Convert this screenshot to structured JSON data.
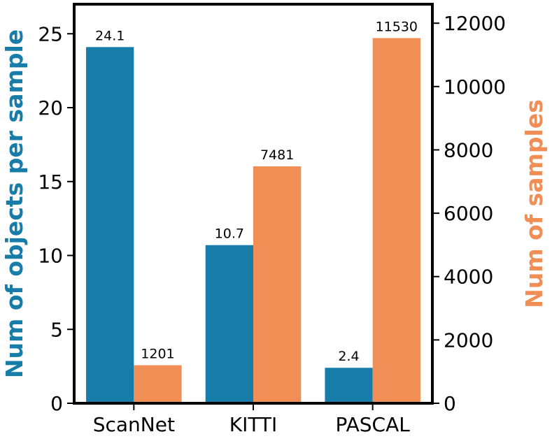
{
  "chart_data": {
    "type": "bar",
    "categories": [
      "ScanNet",
      "KITTI",
      "PASCAL"
    ],
    "series": [
      {
        "name": "Num of objects per sample",
        "axis": "left",
        "color": "#177ca8",
        "values": [
          24.1,
          10.7,
          2.4
        ],
        "labels": [
          "24.1",
          "10.7",
          "2.4"
        ]
      },
      {
        "name": "Num of samples",
        "axis": "right",
        "color": "#f08e55",
        "values": [
          1201,
          7481,
          11530
        ],
        "labels": [
          "1201",
          "7481",
          "11530"
        ]
      }
    ],
    "ylabel_left": "Num of objects per sample",
    "ylabel_right": "Num of samples",
    "ylim_left": [
      0,
      27
    ],
    "ylim_right": [
      0,
      12600
    ],
    "yticks_left": [
      0,
      5,
      10,
      15,
      20,
      25
    ],
    "yticks_right": [
      0,
      2000,
      4000,
      6000,
      8000,
      10000,
      12000
    ],
    "grid": false,
    "legend": "none"
  }
}
